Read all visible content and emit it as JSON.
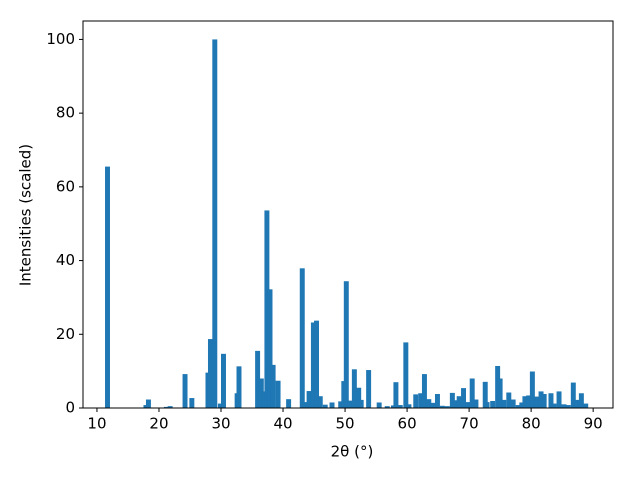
{
  "chart_data": {
    "type": "bar",
    "x_label": "2θ (°)",
    "y_label": "Intensities (scaled)",
    "color": "#1f77b4",
    "grid": false,
    "xlim": [
      7.75,
      93.2
    ],
    "ylim": [
      0,
      105
    ],
    "xticks": [
      10,
      20,
      30,
      40,
      50,
      60,
      70,
      80,
      90
    ],
    "yticks": [
      0,
      20,
      40,
      60,
      80,
      100
    ],
    "x": [
      11.7,
      17.9,
      18.3,
      21.2,
      21.8,
      24.2,
      25.3,
      27.9,
      28.3,
      29.0,
      29.9,
      30.4,
      32.6,
      32.9,
      35.9,
      36.5,
      37.0,
      37.4,
      37.9,
      38.4,
      39.2,
      40.9,
      43.1,
      43.6,
      44.2,
      44.9,
      45.4,
      46.0,
      46.8,
      47.9,
      49.3,
      49.8,
      50.2,
      50.8,
      51.5,
      52.2,
      52.6,
      53.8,
      55.5,
      56.8,
      57.8,
      58.2,
      58.9,
      59.8,
      60.3,
      61.4,
      62.2,
      62.8,
      63.5,
      64.2,
      64.9,
      65.7,
      66.5,
      67.3,
      67.9,
      68.4,
      69.1,
      69.8,
      70.5,
      71.1,
      72.6,
      72.9,
      73.8,
      74.6,
      75.0,
      75.6,
      76.4,
      77.1,
      77.9,
      78.5,
      79.0,
      79.6,
      80.2,
      80.9,
      81.6,
      82.1,
      83.2,
      83.7,
      84.5,
      85.3,
      86.0,
      86.8,
      87.4,
      88.1,
      88.8
    ],
    "values": [
      65.5,
      0.8,
      2.3,
      0.3,
      0.5,
      9.2,
      2.7,
      9.6,
      18.7,
      100,
      1.2,
      14.7,
      4.0,
      11.3,
      15.5,
      8.0,
      4.5,
      53.6,
      32.2,
      11.7,
      7.4,
      2.4,
      37.9,
      1.6,
      4.6,
      23.2,
      23.7,
      3.2,
      0.9,
      1.5,
      1.8,
      7.3,
      34.4,
      2.0,
      10.5,
      5.5,
      2.2,
      10.3,
      1.5,
      0.5,
      0.7,
      7.0,
      0.8,
      17.8,
      1.0,
      3.7,
      4.0,
      9.2,
      2.4,
      1.4,
      3.8,
      0.6,
      0.5,
      4.1,
      2.1,
      3.2,
      5.4,
      1.6,
      8.0,
      2.3,
      7.1,
      1.6,
      1.9,
      11.4,
      8.0,
      2.2,
      4.2,
      2.3,
      0.8,
      1.5,
      3.2,
      3.4,
      9.9,
      3.1,
      4.5,
      3.8,
      4.0,
      1.2,
      4.5,
      1.0,
      0.8,
      6.9,
      2.2,
      4.0,
      1.2
    ]
  }
}
